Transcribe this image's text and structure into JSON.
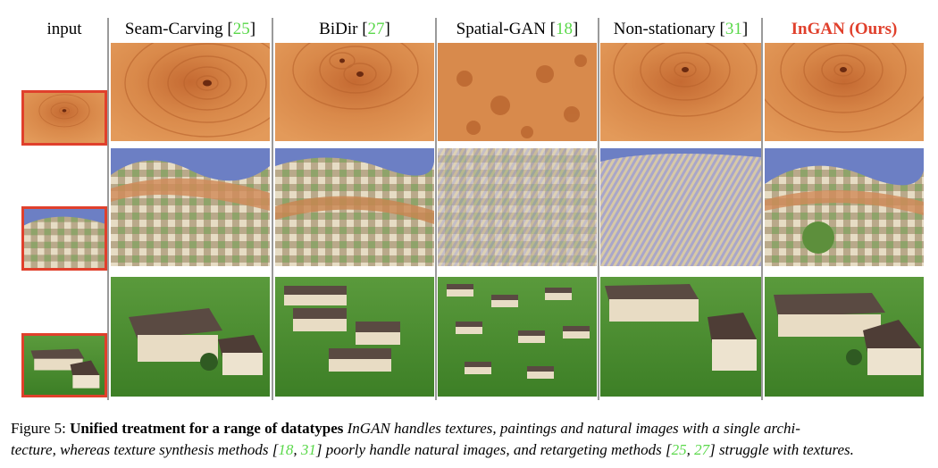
{
  "columns": {
    "input": "input",
    "seam": {
      "name": "Seam-Carving",
      "open": "[",
      "ref": "25",
      "close": "]"
    },
    "bidir": {
      "name": "BiDir",
      "open": "[",
      "ref": "27",
      "close": "]"
    },
    "spatial": {
      "name": "Spatial-GAN",
      "open": "[",
      "ref": "18",
      "close": "]"
    },
    "nonstat": {
      "name": "Non-stationary",
      "open": "[",
      "ref": "31",
      "close": "]"
    },
    "ours": "InGAN (Ours)"
  },
  "rows": [
    "wood texture",
    "painting",
    "natural image (village)"
  ],
  "caption": {
    "label": "Figure 5:",
    "title": "Unified treatment for a range of datatypes",
    "t1": " InGAN handles textures, paintings and natural images with a single archi-",
    "t2": "tecture, whereas texture synthesis methods [",
    "r18": "18",
    "c1": ", ",
    "r31": "31",
    "t3": "] poorly handle natural images, and retargeting methods [",
    "r25": "25",
    "c2": ", ",
    "r27": "27",
    "t4": "] struggle with textures."
  },
  "colors": {
    "accent_red": "#e0402c",
    "ref_green": "#5ad84a",
    "divider": "#9a9a9a"
  }
}
